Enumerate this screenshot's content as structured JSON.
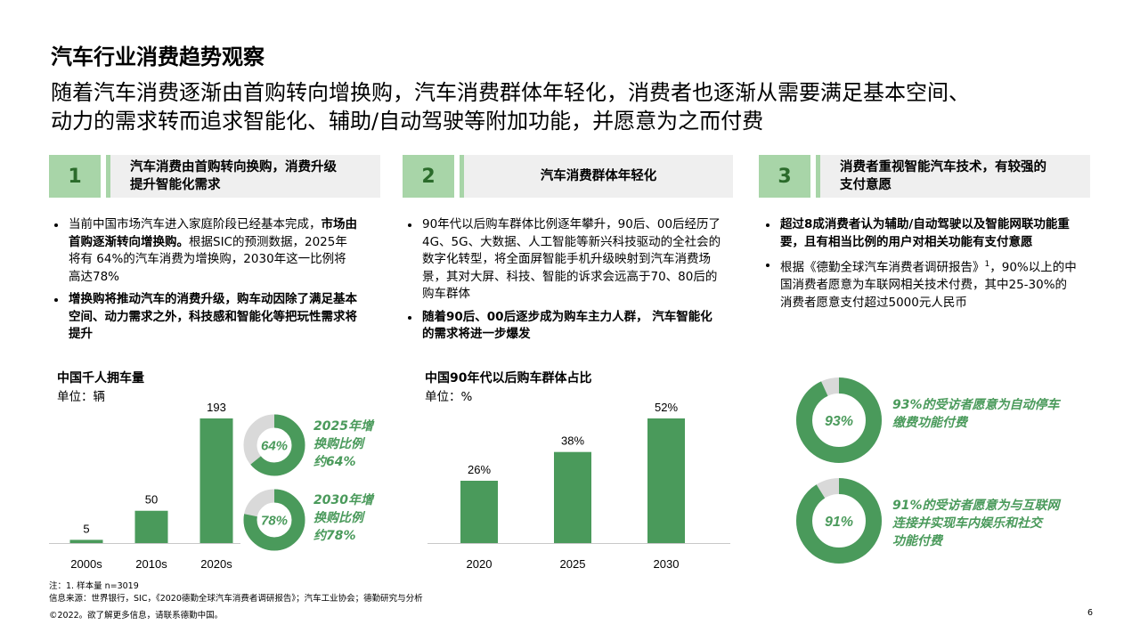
{
  "header": {
    "title": "汽车行业消费趋势观察",
    "subtitle_line1": "随着汽车消费逐渐由首购转向增换购，汽车消费群体年轻化，消费者也逐渐从需要满足基本空间、",
    "subtitle_line2": "动力的需求转而追求智能化、辅助/自动驾驶等附加功能，并愿意为之而付费"
  },
  "sections": [
    {
      "number": "1",
      "heading_line1": "汽车消费由首购转向换购，消费升级",
      "heading_line2": "提升智能化需求",
      "bullet1_part1": "当前中国市场汽车进入家庭阶段已经基本完成，",
      "bullet1_bold": "市场由首购逐渐转向增换购。",
      "bullet1_part2": "根据SIC的预测数据，2025年将有 64%的汽车消费为增换购，2030年这一比例将高达78%",
      "bullet2": "增换购将推动汽车的消费升级，购车动因除了满足基本空间、动力需求之外，科技感和智能化等把玩性需求将提升"
    },
    {
      "number": "2",
      "heading_line1": "汽车消费群体年轻化",
      "bullet1": "90年代以后购车群体比例逐年攀升，90后、00后经历了4G、5G、大数据、人工智能等新兴科技驱动的全社会的数字化转型，将全面屏智能手机升级映射到汽车消费场景，其对大屏、科技、智能的诉求会远高于70、80后的购车群体",
      "bullet2": "随着90后、00后逐步成为购车主力人群， 汽车智能化的需求将进一步爆发"
    },
    {
      "number": "3",
      "heading_line1": "消费者重视智能汽车技术，有较强的",
      "heading_line2": "支付意愿",
      "bullet1": "超过8成消费者认为辅助/自动驾驶以及智能网联功能重要，且有相当比例的用户对相关功能有支付意愿",
      "bullet2_part1": "根据《德勤全球汽车消费者调研报告》",
      "bullet2_sup": "1",
      "bullet2_part2": "，90%以上的中国消费者愿意为车联网相关技术付费，其中25-30%的消费者愿意支付超过5000元人民币"
    }
  ],
  "chart_data": [
    {
      "type": "bar",
      "title": "中国千人拥车量",
      "unit": "单位：辆",
      "categories": [
        "2000s",
        "2010s",
        "2020s"
      ],
      "values": [
        5,
        50,
        193
      ],
      "value_labels": [
        "5",
        "50",
        "193"
      ],
      "color": "#4a9a5b"
    },
    {
      "type": "bar",
      "title": "中国90年代以后购车群体占比",
      "unit": "单位：%",
      "categories": [
        "2020",
        "2025",
        "2030"
      ],
      "values": [
        26,
        38,
        52
      ],
      "value_labels": [
        "26%",
        "38%",
        "52%"
      ],
      "color": "#4a9a5b"
    },
    {
      "type": "pie",
      "donuts": [
        {
          "value": 64,
          "label": "64%",
          "caption": [
            "2025年增",
            "换购比例",
            "约64%"
          ]
        },
        {
          "value": 78,
          "label": "78%",
          "caption": [
            "2030年增",
            "换购比例",
            "约78%"
          ]
        },
        {
          "value": 93,
          "label": "93%",
          "caption": [
            "93%的受访者愿意为自动停车",
            "缴费功能付费"
          ]
        },
        {
          "value": 91,
          "label": "91%",
          "caption": [
            "91%的受访者愿意为与互联网",
            "连接并实现车内娱乐和社交",
            "功能付费"
          ]
        }
      ],
      "fill_color": "#4a9a5b",
      "track_color": "#d9d9d9"
    }
  ],
  "footer": {
    "note1": "注：1. 样本量 n=3019",
    "note2": "信息来源：世界银行，SIC，《2020德勤全球汽车消费者调研报告》；汽车工业协会；德勤研究与分析",
    "copyright": "©2022。欲了解更多信息，请联系德勤中国。",
    "page_number": "6"
  }
}
